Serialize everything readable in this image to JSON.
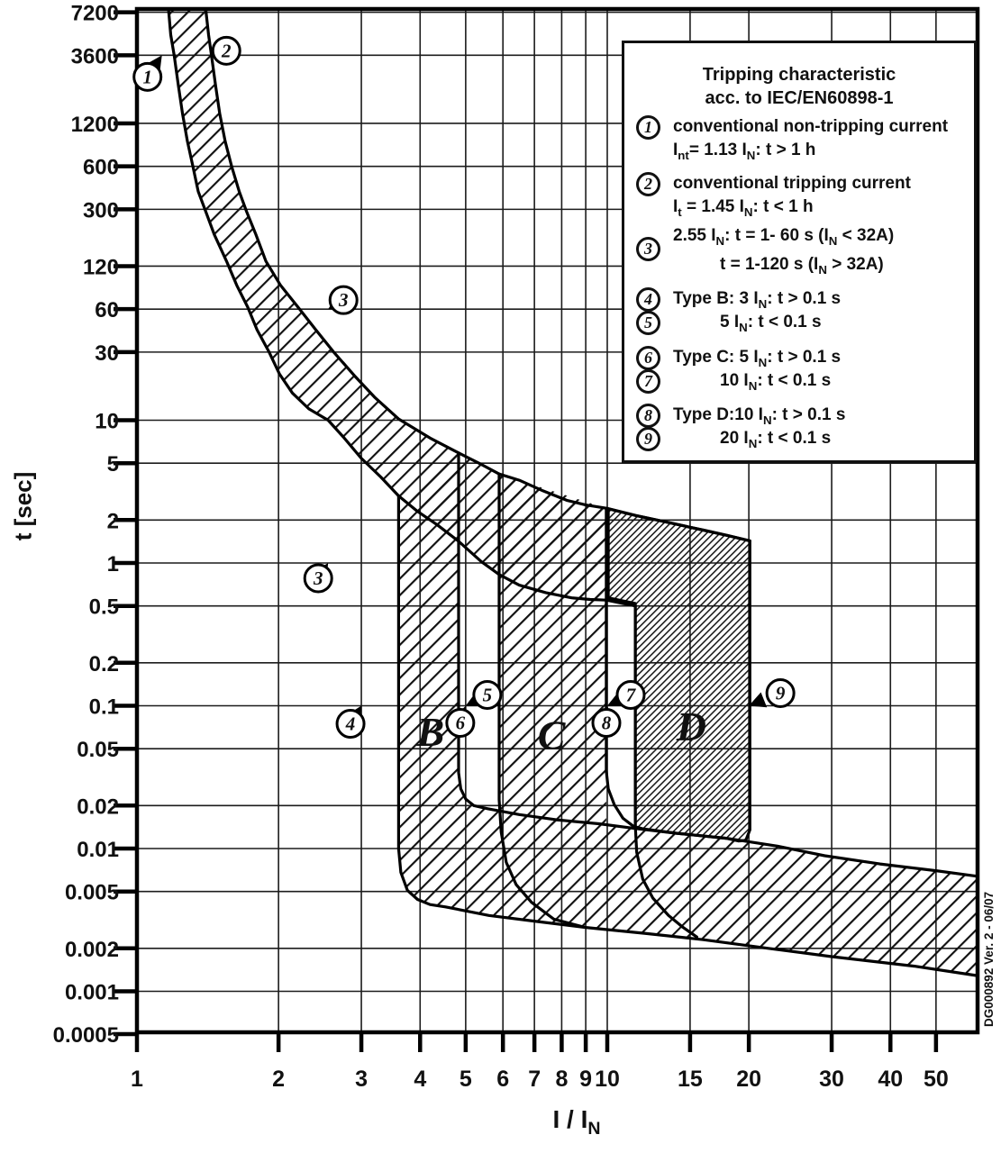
{
  "side_label": "DG000892 Ver. 2 - 06/07",
  "legend": {
    "title_lines": [
      "Tripping characteristic",
      "acc. to IEC/EN60898-1"
    ],
    "items": [
      {
        "num": "1",
        "lines": [
          {
            "text": "conventional non-tripping current",
            "indent": false
          },
          {
            "text": "I[nt]= 1.13 I[N]: t > 1 h",
            "indent": false
          }
        ]
      },
      {
        "num": "2",
        "lines": [
          {
            "text": "conventional tripping current",
            "indent": false
          },
          {
            "text": "I[t] = 1.45 I[N]: t < 1 h",
            "indent": false
          }
        ]
      },
      {
        "num": "3",
        "lines": [
          {
            "text": "2.55 I[N]: t = 1- 60 s (I[N] < 32A)",
            "indent": false
          },
          {
            "text": "t = 1-120 s (I[N] > 32A)",
            "indent": true
          }
        ]
      },
      {
        "num": "4",
        "lines": [
          {
            "text": "Type B: 3 I[N]: t > 0.1 s",
            "indent": false
          }
        ]
      },
      {
        "num": "5",
        "lines": [
          {
            "text": "5 I[N]: t < 0.1 s",
            "indent": true
          }
        ]
      },
      {
        "num": "6",
        "lines": [
          {
            "text": "Type C: 5 I[N]: t > 0.1 s",
            "indent": false
          }
        ]
      },
      {
        "num": "7",
        "lines": [
          {
            "text": "10 I[N]: t < 0.1 s",
            "indent": true
          }
        ]
      },
      {
        "num": "8",
        "lines": [
          {
            "text": "Type D:10 I[N]: t > 0.1 s",
            "indent": false
          }
        ]
      },
      {
        "num": "9",
        "lines": [
          {
            "text": "20 I[N]: t < 0.1 s",
            "indent": true
          }
        ]
      }
    ]
  },
  "chart_data": {
    "type": "area",
    "title": "Tripping characteristic acc. to IEC/EN60898-1",
    "xlabel": "I / I[N]",
    "ylabel": "t [sec]",
    "x_scale": "log",
    "y_scale": "log",
    "xlim": [
      1,
      61
    ],
    "ylim": [
      0.0005,
      7600
    ],
    "x_ticks": [
      1,
      2,
      3,
      4,
      5,
      6,
      7,
      8,
      9,
      10,
      15,
      20,
      30,
      40,
      50
    ],
    "x_tick_labels": [
      "1",
      "2",
      "3",
      "4",
      "5",
      "6",
      "7",
      "8",
      "9",
      "10",
      "15",
      "20",
      "30",
      "40",
      "50"
    ],
    "y_ticks": [
      7200,
      3600,
      1200,
      600,
      300,
      120,
      60,
      30,
      10,
      5,
      2,
      1,
      0.5,
      0.2,
      0.1,
      0.05,
      0.02,
      0.01,
      0.005,
      0.002,
      0.001,
      0.0005
    ],
    "y_tick_labels": [
      "7200",
      "3600",
      "1200",
      "600",
      "300",
      "120",
      "60",
      "30",
      "10",
      "5",
      "2",
      "1",
      "0.5",
      "0.2",
      "0.1",
      "0.05",
      "0.02",
      "0.01",
      "0.005",
      "0.002",
      "0.001",
      "0.0005"
    ],
    "grid": true,
    "tripping_points": {
      "conventional_non_tripping": {
        "I": 1.13,
        "t_s": 3600
      },
      "conventional_tripping": {
        "I": 1.45,
        "t_s": 3600
      },
      "thermal_2_55": [
        {
          "I": 2.55,
          "t_range_s": [
            1,
            60
          ],
          "cond": "IN < 32A"
        },
        {
          "I": 2.55,
          "t_range_s": [
            1,
            120
          ],
          "cond": "IN > 32A"
        }
      ],
      "type_B": {
        "hold": {
          "I": 3,
          "t": "> 0.1 s"
        },
        "trip": {
          "I": 5,
          "t": "< 0.1 s"
        }
      },
      "type_C": {
        "hold": {
          "I": 5,
          "t": "> 0.1 s"
        },
        "trip": {
          "I": 10,
          "t": "< 0.1 s"
        }
      },
      "type_D": {
        "hold": {
          "I": 10,
          "t": "> 0.1 s"
        },
        "trip": {
          "I": 20,
          "t": "< 0.1 s"
        }
      }
    },
    "curves": {
      "uc": [
        [
          1.4,
          7600
        ],
        [
          1.42,
          5000
        ],
        [
          1.44,
          3600
        ],
        [
          1.47,
          2200
        ],
        [
          1.5,
          1400
        ],
        [
          1.54,
          900
        ],
        [
          1.59,
          600
        ],
        [
          1.65,
          400
        ],
        [
          1.71,
          290
        ],
        [
          1.79,
          200
        ],
        [
          1.88,
          130
        ],
        [
          2.02,
          88
        ],
        [
          2.2,
          62
        ],
        [
          2.4,
          43
        ],
        [
          2.62,
          30
        ],
        [
          2.9,
          20.5
        ],
        [
          3.2,
          14.5
        ],
        [
          3.6,
          10.2
        ],
        [
          4.2,
          7.5
        ],
        [
          4.83,
          5.9
        ],
        [
          5.4,
          4.9
        ],
        [
          5.89,
          4.2
        ],
        [
          6.5,
          3.8
        ],
        [
          7.3,
          3.2
        ],
        [
          8.2,
          2.75
        ],
        [
          9.0,
          2.55
        ],
        [
          9.95,
          2.42
        ]
      ],
      "d_top": [
        [
          9.95,
          2.42
        ],
        [
          11.5,
          2.15
        ],
        [
          13.5,
          1.92
        ],
        [
          16,
          1.7
        ],
        [
          18,
          1.56
        ],
        [
          20.1,
          1.43
        ]
      ],
      "lc": [
        [
          1.167,
          7600
        ],
        [
          1.18,
          5000
        ],
        [
          1.2,
          3600
        ],
        [
          1.225,
          2200
        ],
        [
          1.25,
          1400
        ],
        [
          1.28,
          900
        ],
        [
          1.315,
          600
        ],
        [
          1.35,
          400
        ],
        [
          1.4,
          290
        ],
        [
          1.46,
          200
        ],
        [
          1.55,
          130
        ],
        [
          1.63,
          88
        ],
        [
          1.72,
          62
        ],
        [
          1.8,
          43
        ],
        [
          1.91,
          30
        ],
        [
          2.01,
          21
        ],
        [
          2.14,
          15.5
        ],
        [
          2.32,
          12
        ],
        [
          2.55,
          10
        ],
        [
          2.75,
          7.6
        ],
        [
          3.0,
          5.4
        ],
        [
          3.3,
          4.0
        ],
        [
          3.6,
          2.95
        ],
        [
          3.95,
          2.3
        ],
        [
          4.35,
          1.85
        ],
        [
          4.83,
          1.42
        ],
        [
          5.4,
          1.02
        ],
        [
          5.89,
          0.83
        ],
        [
          6.5,
          0.7
        ],
        [
          7.4,
          0.62
        ],
        [
          8.4,
          0.57
        ],
        [
          9.2,
          0.555
        ],
        [
          9.95,
          0.55
        ]
      ],
      "lc_jog": [
        [
          9.95,
          0.55
        ],
        [
          11.47,
          0.5
        ]
      ],
      "bl": [
        [
          3.6,
          2.95
        ],
        [
          3.6,
          0.01
        ],
        [
          3.64,
          0.0068
        ],
        [
          3.76,
          0.0051
        ],
        [
          3.95,
          0.0044
        ],
        [
          4.2,
          0.00405
        ],
        [
          4.53,
          0.0039
        ],
        [
          5.6,
          0.0034
        ],
        [
          7,
          0.0031
        ],
        [
          9,
          0.0028
        ],
        [
          12,
          0.00255
        ],
        [
          16,
          0.0023
        ],
        [
          22,
          0.002
        ],
        [
          30,
          0.00175
        ],
        [
          45,
          0.0015
        ],
        [
          61,
          0.00129
        ]
      ],
      "br": [
        [
          4.83,
          5.9
        ],
        [
          4.83,
          0.034
        ],
        [
          4.88,
          0.0262
        ],
        [
          5.0,
          0.0222
        ],
        [
          5.2,
          0.02
        ],
        [
          5.57,
          0.019
        ],
        [
          6.5,
          0.0173
        ],
        [
          7.8,
          0.0159
        ],
        [
          9.6,
          0.0149
        ],
        [
          11.5,
          0.0138
        ],
        [
          14,
          0.0128
        ],
        [
          17.9,
          0.0118
        ],
        [
          23,
          0.0104
        ],
        [
          29,
          0.0089
        ],
        [
          38,
          0.0078
        ],
        [
          50,
          0.007
        ],
        [
          61,
          0.0064
        ]
      ],
      "cl": [
        [
          5.89,
          4.2
        ],
        [
          5.89,
          0.022
        ],
        [
          5.95,
          0.013
        ],
        [
          6.1,
          0.008
        ],
        [
          6.4,
          0.0056
        ],
        [
          6.9,
          0.0042
        ],
        [
          7.7,
          0.0032
        ],
        [
          8.9,
          0.00282
        ]
      ],
      "cr": [
        [
          9.95,
          2.42
        ],
        [
          9.95,
          0.035
        ],
        [
          10.05,
          0.0262
        ],
        [
          10.35,
          0.0203
        ],
        [
          10.8,
          0.0163
        ],
        [
          11.5,
          0.0139
        ]
      ],
      "dl": [
        [
          11.47,
          0.5
        ],
        [
          11.47,
          0.0145
        ],
        [
          11.55,
          0.0094
        ],
        [
          11.9,
          0.0061
        ],
        [
          12.5,
          0.0045
        ],
        [
          13.5,
          0.0034
        ],
        [
          14.5,
          0.0028
        ],
        [
          15.5,
          0.0024
        ]
      ],
      "c_box": [
        [
          5.89,
          4.2
        ],
        [
          5.89,
          0.0145
        ],
        [
          9.95,
          0.0145
        ],
        [
          9.95,
          2.42
        ]
      ],
      "d_region": [
        [
          10.05,
          2.4
        ],
        [
          11.5,
          2.15
        ],
        [
          13.5,
          1.92
        ],
        [
          16,
          1.7
        ],
        [
          18,
          1.56
        ],
        [
          20.1,
          1.43
        ],
        [
          20.1,
          0.0135
        ],
        [
          19.7,
          0.0114
        ],
        [
          19.0,
          0.0113
        ],
        [
          17.9,
          0.0118
        ],
        [
          14,
          0.0128
        ],
        [
          11.9,
          0.01375
        ],
        [
          11.47,
          0.0142
        ],
        [
          11.47,
          0.52
        ],
        [
          10.05,
          0.57
        ]
      ]
    },
    "zone_labels": [
      {
        "text": "B",
        "I": 4.21,
        "t": 0.066
      },
      {
        "text": "C",
        "I": 7.61,
        "t": 0.063
      },
      {
        "text": "D",
        "I": 15.1,
        "t": 0.072
      }
    ],
    "markers": [
      {
        "num": "1",
        "I": 1.13,
        "t": 3600
      },
      {
        "num": "2",
        "I": 1.45,
        "t": 3600
      },
      {
        "num": "3",
        "I": 2.55,
        "t": 60
      },
      {
        "num": "3",
        "I": 2.55,
        "t": 1
      },
      {
        "num": "4",
        "I": 3,
        "t": 0.1
      },
      {
        "num": "5",
        "I": 5,
        "t": 0.1
      },
      {
        "num": "6",
        "I": 5,
        "t": 0.1
      },
      {
        "num": "7",
        "I": 10,
        "t": 0.1
      },
      {
        "num": "8",
        "I": 10,
        "t": 0.1
      },
      {
        "num": "9",
        "I": 20,
        "t": 0.1
      }
    ]
  }
}
